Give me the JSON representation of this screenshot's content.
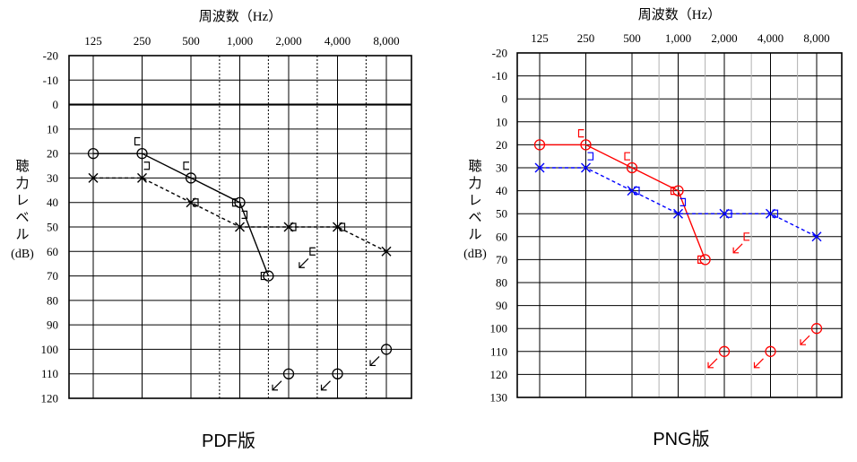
{
  "chart_data": [
    {
      "type": "line",
      "caption": "PDF版",
      "title": "周波数（Hz）",
      "ylabel_chars": [
        "聴",
        "力",
        "レ",
        "ベ",
        "ル"
      ],
      "ylabel_unit": "(dB)",
      "x_ticks": [
        "125",
        "250",
        "500",
        "1,000",
        "2,000",
        "4,000",
        "8,000"
      ],
      "x_octaves": [
        125,
        250,
        500,
        1000,
        2000,
        4000,
        8000
      ],
      "x_half_octaves": [
        750,
        1500,
        3000,
        6000
      ],
      "y_ticks": [
        "-20",
        "-10",
        "0",
        "10",
        "20",
        "30",
        "40",
        "50",
        "60",
        "70",
        "80",
        "90",
        "100",
        "110",
        "120"
      ],
      "ylim": [
        -20,
        120
      ],
      "bold_zero_line": true,
      "colors": {
        "air_right": "#000000",
        "air_left": "#000000",
        "bone_right": "#000000",
        "bone_left": "#000000",
        "grid": "#000000",
        "half_grid": "#000000"
      },
      "series": [
        {
          "name": "右 気導",
          "marker": "circle",
          "style": "solid",
          "points": [
            [
              125,
              20
            ],
            [
              250,
              20
            ],
            [
              500,
              30
            ],
            [
              1000,
              40
            ],
            [
              1500,
              70
            ]
          ]
        },
        {
          "name": "右 気導 スケールアウト",
          "marker": "circle-arrow",
          "style": "none",
          "points": [
            [
              2000,
              110
            ],
            [
              4000,
              110
            ],
            [
              8000,
              100
            ]
          ]
        },
        {
          "name": "左 気導",
          "marker": "cross",
          "style": "dashed",
          "points": [
            [
              125,
              30
            ],
            [
              250,
              30
            ],
            [
              500,
              40
            ],
            [
              1000,
              50
            ],
            [
              2000,
              50
            ],
            [
              4000,
              50
            ],
            [
              8000,
              60
            ]
          ]
        },
        {
          "name": "右 骨導",
          "marker": "bracket-right",
          "style": "none",
          "points": [
            [
              250,
              15
            ],
            [
              500,
              25
            ],
            [
              1000,
              40
            ],
            [
              1500,
              70
            ]
          ]
        },
        {
          "name": "右 骨導 スケールアウト",
          "marker": "bracket-right-arrow",
          "style": "none",
          "points": [
            [
              3000,
              60
            ]
          ]
        },
        {
          "name": "左 骨導",
          "marker": "bracket-left",
          "style": "none",
          "points": [
            [
              250,
              25
            ],
            [
              500,
              40
            ],
            [
              1000,
              45
            ],
            [
              2000,
              50
            ],
            [
              4000,
              50
            ]
          ]
        }
      ]
    },
    {
      "type": "line",
      "caption": "PNG版",
      "title": "周波数（Hz）",
      "ylabel_chars": [
        "聴",
        "力",
        "レ",
        "ベ",
        "ル"
      ],
      "ylabel_unit": "(dB)",
      "x_ticks": [
        "125",
        "250",
        "500",
        "1,000",
        "2,000",
        "4,000",
        "8,000"
      ],
      "x_octaves": [
        125,
        250,
        500,
        1000,
        2000,
        4000,
        8000
      ],
      "x_half_octaves": [
        750,
        1500,
        3000,
        6000
      ],
      "y_ticks": [
        "-20",
        "-10",
        "0",
        "10",
        "20",
        "30",
        "40",
        "50",
        "60",
        "70",
        "80",
        "90",
        "100",
        "110",
        "120",
        "130"
      ],
      "ylim": [
        -20,
        130
      ],
      "bold_zero_line": false,
      "colors": {
        "air_right": "#ff0000",
        "air_left": "#0000ff",
        "bone_right": "#ff0000",
        "bone_left": "#0000ff",
        "grid": "#000000",
        "half_grid": "#b0b0b0"
      },
      "series": [
        {
          "name": "右 気導",
          "marker": "circle",
          "style": "solid",
          "color": "#ff0000",
          "points": [
            [
              125,
              20
            ],
            [
              250,
              20
            ],
            [
              500,
              30
            ],
            [
              1000,
              40
            ],
            [
              1500,
              70
            ]
          ]
        },
        {
          "name": "右 気導 スケールアウト",
          "marker": "circle-arrow",
          "style": "none",
          "color": "#ff0000",
          "points": [
            [
              2000,
              110
            ],
            [
              4000,
              110
            ],
            [
              8000,
              100
            ]
          ]
        },
        {
          "name": "左 気導",
          "marker": "cross",
          "style": "dashed",
          "color": "#0000ff",
          "points": [
            [
              125,
              30
            ],
            [
              250,
              30
            ],
            [
              500,
              40
            ],
            [
              1000,
              50
            ],
            [
              2000,
              50
            ],
            [
              4000,
              50
            ],
            [
              8000,
              60
            ]
          ]
        },
        {
          "name": "右 骨導",
          "marker": "bracket-right",
          "style": "none",
          "color": "#ff0000",
          "points": [
            [
              250,
              15
            ],
            [
              500,
              25
            ],
            [
              1000,
              40
            ],
            [
              1500,
              70
            ]
          ]
        },
        {
          "name": "右 骨導 スケールアウト",
          "marker": "bracket-right-arrow",
          "style": "none",
          "color": "#ff0000",
          "points": [
            [
              3000,
              60
            ]
          ]
        },
        {
          "name": "左 骨導",
          "marker": "bracket-left",
          "style": "none",
          "color": "#0000ff",
          "points": [
            [
              250,
              25
            ],
            [
              500,
              40
            ],
            [
              1000,
              45
            ],
            [
              2000,
              50
            ],
            [
              4000,
              50
            ]
          ]
        }
      ]
    }
  ]
}
